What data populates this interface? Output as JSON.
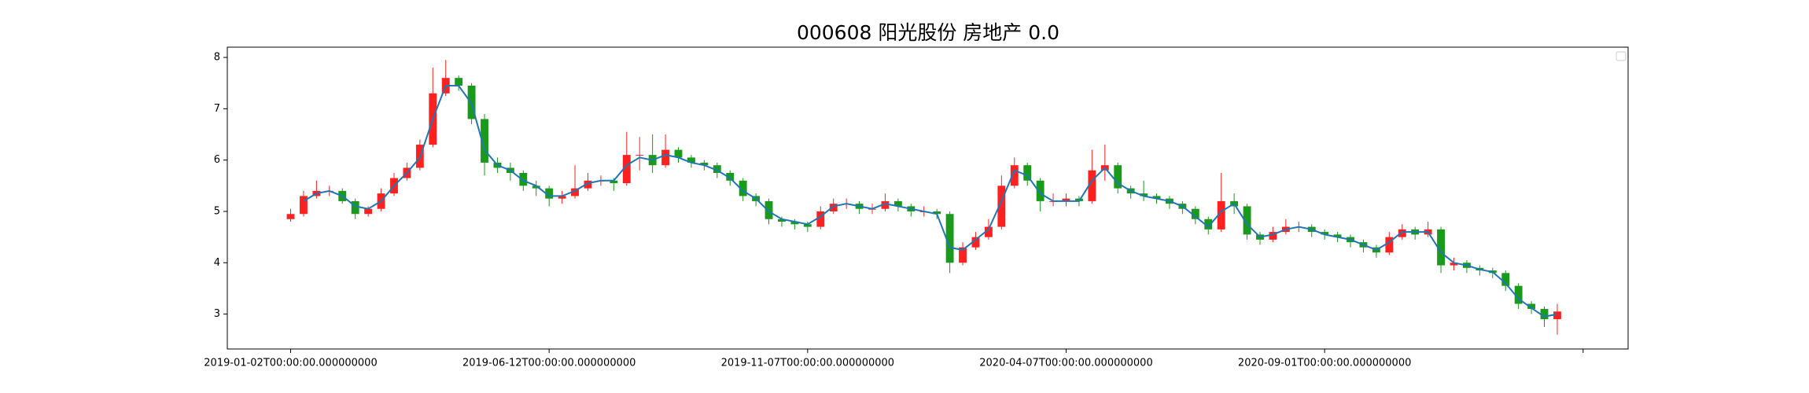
{
  "chart_data": {
    "type": "candlestick",
    "title": "000608 阳光股份 房地产 0.0",
    "up_color": "#ff2020",
    "down_color": "#1a9a1a",
    "xlim": [
      -24.5,
      517.4
    ],
    "ylim": [
      2.32,
      8.2
    ],
    "xticks": [
      {
        "value": 0,
        "label": "2019-01-02T00:00:00.000000000"
      },
      {
        "value": 100,
        "label": "2019-06-12T00:00:00.000000000"
      },
      {
        "value": 200,
        "label": "2019-11-07T00:00:00.000000000"
      },
      {
        "value": 300,
        "label": "2020-04-07T00:00:00.000000000"
      },
      {
        "value": 400,
        "label": "2020-09-01T00:00:00.000000000"
      },
      {
        "value": 500,
        "label": null
      }
    ],
    "yticks": [
      3,
      4,
      5,
      6,
      7,
      8
    ],
    "x": [
      0,
      5,
      10,
      15,
      20,
      25,
      30,
      35,
      40,
      45,
      50,
      55,
      60,
      65,
      70,
      75,
      80,
      85,
      90,
      95,
      100,
      105,
      110,
      115,
      120,
      125,
      130,
      135,
      140,
      145,
      150,
      155,
      160,
      165,
      170,
      175,
      180,
      185,
      190,
      195,
      200,
      205,
      210,
      215,
      220,
      225,
      230,
      235,
      240,
      245,
      250,
      255,
      260,
      265,
      270,
      275,
      280,
      285,
      290,
      295,
      300,
      305,
      310,
      315,
      320,
      325,
      330,
      335,
      340,
      345,
      350,
      355,
      360,
      365,
      370,
      375,
      380,
      385,
      390,
      395,
      400,
      405,
      410,
      415,
      420,
      425,
      430,
      435,
      440,
      445,
      450,
      455,
      460,
      465,
      470,
      475,
      480,
      485,
      490
    ],
    "open": [
      4.85,
      4.95,
      5.3,
      5.4,
      5.4,
      5.2,
      4.95,
      5.05,
      5.35,
      5.65,
      5.85,
      6.3,
      7.3,
      7.6,
      7.45,
      6.8,
      5.95,
      5.85,
      5.75,
      5.5,
      5.45,
      5.25,
      5.3,
      5.45,
      5.6,
      5.6,
      5.55,
      6.1,
      6.1,
      5.9,
      6.2,
      6.05,
      5.95,
      5.9,
      5.75,
      5.6,
      5.3,
      5.2,
      4.85,
      4.8,
      4.75,
      4.7,
      5.0,
      5.15,
      5.15,
      5.05,
      5.05,
      5.2,
      5.1,
      5.0,
      5.0,
      4.95,
      4.0,
      4.3,
      4.5,
      4.7,
      5.5,
      5.9,
      5.6,
      5.2,
      5.2,
      5.25,
      5.2,
      5.8,
      5.9,
      5.45,
      5.35,
      5.3,
      5.25,
      5.15,
      5.05,
      4.85,
      4.65,
      5.2,
      5.1,
      4.55,
      4.45,
      4.6,
      4.7,
      4.7,
      4.6,
      4.55,
      4.5,
      4.4,
      4.3,
      4.2,
      4.5,
      4.65,
      4.55,
      4.65,
      3.95,
      4.0,
      3.9,
      3.85,
      3.8,
      3.55,
      3.2,
      3.1,
      2.9
    ],
    "high": [
      5.05,
      5.4,
      5.6,
      5.5,
      5.45,
      5.25,
      5.1,
      5.45,
      5.75,
      5.95,
      6.4,
      7.8,
      7.95,
      7.65,
      7.5,
      6.9,
      6.05,
      5.95,
      5.8,
      5.6,
      5.5,
      5.4,
      5.9,
      5.75,
      5.7,
      5.65,
      6.55,
      6.45,
      6.5,
      6.5,
      6.25,
      6.1,
      6.0,
      5.95,
      5.8,
      5.65,
      5.35,
      5.25,
      4.9,
      4.85,
      4.8,
      5.1,
      5.25,
      5.25,
      5.2,
      5.15,
      5.35,
      5.25,
      5.15,
      5.1,
      5.05,
      5.0,
      4.4,
      4.6,
      4.85,
      5.7,
      6.05,
      5.95,
      5.65,
      5.35,
      5.35,
      5.3,
      6.2,
      6.3,
      5.95,
      5.5,
      5.6,
      5.35,
      5.3,
      5.2,
      5.1,
      4.9,
      5.75,
      5.35,
      5.15,
      4.6,
      4.7,
      4.85,
      4.8,
      4.75,
      4.65,
      4.6,
      4.55,
      4.45,
      4.35,
      4.6,
      4.75,
      4.7,
      4.8,
      4.7,
      4.1,
      4.05,
      3.95,
      3.9,
      3.85,
      3.6,
      3.25,
      3.15,
      3.2
    ],
    "low": [
      4.8,
      4.9,
      5.25,
      5.3,
      5.15,
      4.85,
      4.9,
      5.0,
      5.3,
      5.6,
      5.8,
      6.25,
      7.25,
      7.35,
      6.7,
      5.7,
      5.75,
      5.6,
      5.4,
      5.3,
      5.1,
      5.15,
      5.25,
      5.4,
      5.5,
      5.4,
      5.5,
      5.8,
      5.75,
      5.85,
      5.95,
      5.85,
      5.8,
      5.65,
      5.5,
      5.2,
      5.1,
      4.75,
      4.7,
      4.65,
      4.6,
      4.65,
      4.95,
      5.05,
      4.95,
      4.95,
      5.0,
      5.0,
      4.9,
      4.9,
      4.85,
      3.8,
      3.95,
      4.25,
      4.45,
      4.65,
      5.45,
      5.5,
      5.0,
      5.1,
      5.1,
      5.1,
      5.15,
      5.6,
      5.35,
      5.25,
      5.2,
      5.15,
      5.05,
      4.95,
      4.75,
      4.55,
      4.6,
      4.95,
      4.45,
      4.35,
      4.4,
      4.55,
      4.6,
      4.5,
      4.45,
      4.4,
      4.3,
      4.2,
      4.1,
      4.15,
      4.45,
      4.45,
      4.5,
      3.8,
      3.85,
      3.8,
      3.75,
      3.7,
      3.45,
      3.1,
      3.0,
      2.75,
      2.6
    ],
    "close": [
      4.95,
      5.3,
      5.4,
      5.4,
      5.2,
      4.95,
      5.05,
      5.35,
      5.65,
      5.85,
      6.3,
      7.3,
      7.6,
      7.45,
      6.8,
      5.95,
      5.85,
      5.75,
      5.5,
      5.45,
      5.25,
      5.3,
      5.45,
      5.6,
      5.6,
      5.55,
      6.1,
      6.1,
      5.9,
      6.2,
      6.05,
      5.95,
      5.9,
      5.75,
      5.6,
      5.3,
      5.2,
      4.85,
      4.8,
      4.75,
      4.7,
      5.0,
      5.15,
      5.15,
      5.05,
      5.05,
      5.2,
      5.1,
      5.0,
      5.0,
      4.95,
      4.0,
      4.3,
      4.5,
      4.7,
      5.5,
      5.9,
      5.6,
      5.2,
      5.2,
      5.25,
      5.2,
      5.8,
      5.9,
      5.45,
      5.35,
      5.3,
      5.25,
      5.15,
      5.05,
      4.85,
      4.65,
      5.2,
      5.1,
      4.55,
      4.45,
      4.6,
      4.7,
      4.7,
      4.6,
      4.55,
      4.5,
      4.4,
      4.3,
      4.2,
      4.5,
      4.65,
      4.55,
      4.65,
      3.95,
      4.0,
      3.9,
      3.85,
      3.8,
      3.55,
      3.2,
      3.1,
      2.9,
      3.05
    ],
    "line": {
      "color": "#1f77b4",
      "values": [
        null,
        5.2,
        5.35,
        5.4,
        5.3,
        5.1,
        5.05,
        5.2,
        5.5,
        5.75,
        6.05,
        6.8,
        7.45,
        7.45,
        7.1,
        6.2,
        5.9,
        5.8,
        5.6,
        5.5,
        5.3,
        5.3,
        5.4,
        5.55,
        5.6,
        5.6,
        5.9,
        6.05,
        6.0,
        6.1,
        6.05,
        5.95,
        5.9,
        5.8,
        5.65,
        5.4,
        5.25,
        5.0,
        4.85,
        4.8,
        4.75,
        4.9,
        5.1,
        5.15,
        5.1,
        5.05,
        5.15,
        5.1,
        5.05,
        5.0,
        4.95,
        4.3,
        4.25,
        4.45,
        4.65,
        5.2,
        5.8,
        5.7,
        5.35,
        5.2,
        5.2,
        5.2,
        5.6,
        5.85,
        5.55,
        5.4,
        5.3,
        5.25,
        5.2,
        5.1,
        4.9,
        4.7,
        5.0,
        5.15,
        4.75,
        4.5,
        4.55,
        4.65,
        4.7,
        4.65,
        4.55,
        4.5,
        4.45,
        4.35,
        4.25,
        4.4,
        4.6,
        4.6,
        4.6,
        4.2,
        4.0,
        3.95,
        3.87,
        3.82,
        3.6,
        3.3,
        3.12,
        2.95,
        3.0
      ]
    }
  }
}
